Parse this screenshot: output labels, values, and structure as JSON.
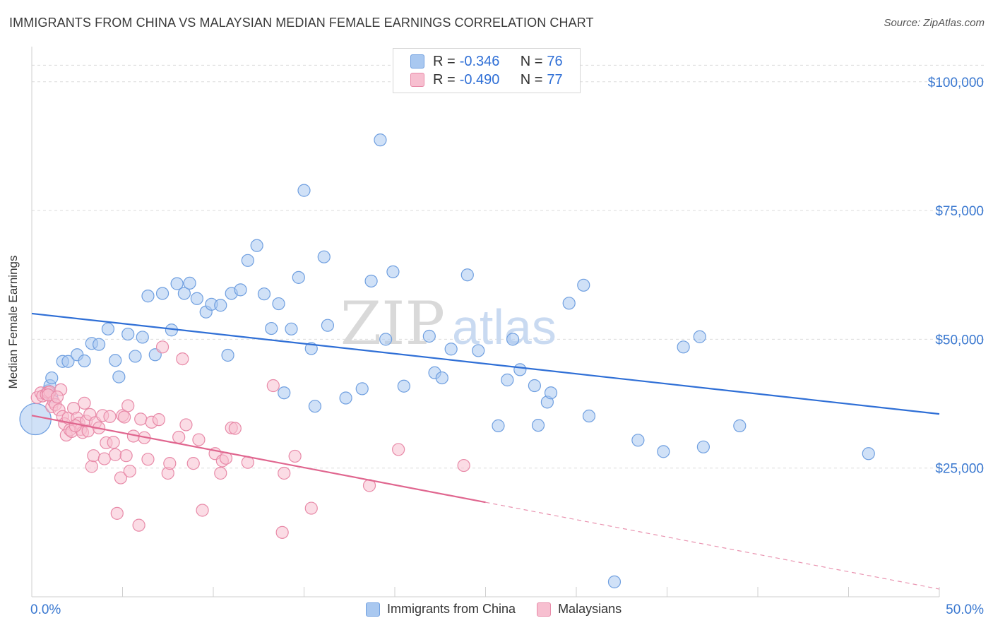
{
  "header": {
    "title": "IMMIGRANTS FROM CHINA VS MALAYSIAN MEDIAN FEMALE EARNINGS CORRELATION CHART",
    "source": "Source: ZipAtlas.com"
  },
  "watermark": {
    "part1": "ZIP",
    "part2": "atlas"
  },
  "legend": {
    "rows": [
      {
        "r_label": "R =",
        "r_value": "-0.346",
        "n_label": "N =",
        "n_value": "76",
        "color": "#a9c8f0",
        "border": "#6f9fe0"
      },
      {
        "r_label": "R =",
        "r_value": "-0.490",
        "n_label": "N =",
        "n_value": "77",
        "color": "#f7bfd0",
        "border": "#e88aa8"
      }
    ]
  },
  "bottom_legend": {
    "items": [
      {
        "label": "Immigrants from China",
        "color": "#a9c8f0",
        "border": "#6f9fe0"
      },
      {
        "label": "Malaysians",
        "color": "#f7bfd0",
        "border": "#e88aa8"
      }
    ]
  },
  "chart_data": {
    "type": "scatter",
    "title": "IMMIGRANTS FROM CHINA VS MALAYSIAN MEDIAN FEMALE EARNINGS CORRELATION CHART",
    "xlabel": "",
    "ylabel": "Median Female Earnings",
    "xlim": [
      0,
      50
    ],
    "ylim": [
      0,
      106000
    ],
    "x_tick_labels": [
      "0.0%",
      "50.0%"
    ],
    "y_ticks": [
      25000,
      50000,
      75000,
      100000
    ],
    "y_tick_labels": [
      "$25,000",
      "$50,000",
      "$75,000",
      "$100,000"
    ],
    "grid": true,
    "legend_position": "top-center",
    "series": [
      {
        "name": "Immigrants from China",
        "color": "#6f9fe0",
        "fill": "#a9c8f0",
        "trend_color": "#2f6fd6",
        "trend": {
          "x0": 0,
          "y0": 55000,
          "x1": 50,
          "y1": 35500,
          "solid_until": 50
        },
        "points": [
          [
            0.2,
            34500,
            2.6
          ],
          [
            0.9,
            40000,
            1
          ],
          [
            1.0,
            41000,
            1
          ],
          [
            1.1,
            38800,
            1
          ],
          [
            1.1,
            42500,
            1
          ],
          [
            1.7,
            45700,
            1
          ],
          [
            2.0,
            45700,
            1
          ],
          [
            2.5,
            47000,
            1
          ],
          [
            2.9,
            45800,
            1
          ],
          [
            3.3,
            49200,
            1
          ],
          [
            3.7,
            49000,
            1
          ],
          [
            4.2,
            52000,
            1
          ],
          [
            4.6,
            45900,
            1
          ],
          [
            4.8,
            42700,
            1
          ],
          [
            5.3,
            51000,
            1
          ],
          [
            5.7,
            46700,
            1
          ],
          [
            6.1,
            50400,
            1
          ],
          [
            6.4,
            58400,
            1
          ],
          [
            6.8,
            47000,
            1
          ],
          [
            7.2,
            58900,
            1
          ],
          [
            7.7,
            51800,
            1
          ],
          [
            8.0,
            60800,
            1
          ],
          [
            8.4,
            58900,
            1
          ],
          [
            8.7,
            60900,
            1
          ],
          [
            9.1,
            57900,
            1
          ],
          [
            9.6,
            55300,
            1
          ],
          [
            9.9,
            56800,
            1
          ],
          [
            10.4,
            56600,
            1
          ],
          [
            10.8,
            46900,
            1
          ],
          [
            11.0,
            58900,
            1
          ],
          [
            11.5,
            59600,
            1
          ],
          [
            11.9,
            65300,
            1
          ],
          [
            12.4,
            68200,
            1
          ],
          [
            12.8,
            58800,
            1
          ],
          [
            13.2,
            52100,
            1
          ],
          [
            13.6,
            56900,
            1
          ],
          [
            13.9,
            39600,
            1
          ],
          [
            14.3,
            52000,
            1
          ],
          [
            14.7,
            62000,
            1
          ],
          [
            15.0,
            78900,
            1
          ],
          [
            15.4,
            48200,
            1
          ],
          [
            15.6,
            37000,
            1
          ],
          [
            16.1,
            66000,
            1
          ],
          [
            16.3,
            52700,
            1
          ],
          [
            17.3,
            38600,
            1
          ],
          [
            18.2,
            40400,
            1
          ],
          [
            18.7,
            61300,
            1
          ],
          [
            19.2,
            88700,
            1
          ],
          [
            19.5,
            50000,
            1
          ],
          [
            19.9,
            63100,
            1
          ],
          [
            20.5,
            40900,
            1
          ],
          [
            21.9,
            50600,
            1
          ],
          [
            22.2,
            43500,
            1
          ],
          [
            22.6,
            42500,
            1
          ],
          [
            23.1,
            48100,
            1
          ],
          [
            24.0,
            62500,
            1
          ],
          [
            24.6,
            47800,
            1
          ],
          [
            25.7,
            33200,
            1
          ],
          [
            26.2,
            42100,
            1
          ],
          [
            26.5,
            50000,
            1
          ],
          [
            26.9,
            44100,
            1
          ],
          [
            27.7,
            41000,
            1
          ],
          [
            27.9,
            33300,
            1
          ],
          [
            28.4,
            37800,
            1
          ],
          [
            28.6,
            39600,
            1
          ],
          [
            29.6,
            57000,
            1
          ],
          [
            30.4,
            60500,
            1
          ],
          [
            30.7,
            35100,
            1
          ],
          [
            32.1,
            2900,
            1
          ],
          [
            33.4,
            30400,
            1
          ],
          [
            34.8,
            28200,
            1
          ],
          [
            35.9,
            48500,
            1
          ],
          [
            36.8,
            50500,
            1
          ],
          [
            37.0,
            29100,
            1
          ],
          [
            39.0,
            33200,
            1
          ],
          [
            46.1,
            27800,
            1
          ]
        ]
      },
      {
        "name": "Malaysians",
        "color": "#e88aa8",
        "fill": "#f7bfd0",
        "trend_color": "#e0668f",
        "trend": {
          "x0": 0,
          "y0": 35200,
          "x1": 50,
          "y1": 1500,
          "solid_until": 25
        },
        "points": [
          [
            0.3,
            38700,
            1
          ],
          [
            0.5,
            39600,
            1
          ],
          [
            0.6,
            39000,
            1
          ],
          [
            0.8,
            39300,
            1
          ],
          [
            0.9,
            39700,
            1
          ],
          [
            1.0,
            39800,
            1
          ],
          [
            1.1,
            36900,
            1
          ],
          [
            1.2,
            37900,
            1
          ],
          [
            1.3,
            37300,
            1
          ],
          [
            1.5,
            36300,
            1
          ],
          [
            1.6,
            40200,
            1
          ],
          [
            1.7,
            35000,
            1
          ],
          [
            1.8,
            33600,
            1
          ],
          [
            1.9,
            31400,
            1
          ],
          [
            2.0,
            34700,
            1
          ],
          [
            2.1,
            32400,
            1
          ],
          [
            2.2,
            32100,
            1
          ],
          [
            2.3,
            36600,
            1
          ],
          [
            2.5,
            34700,
            1
          ],
          [
            2.6,
            33700,
            1
          ],
          [
            2.7,
            32500,
            1
          ],
          [
            2.8,
            31900,
            1
          ],
          [
            2.9,
            37600,
            1
          ],
          [
            3.0,
            34100,
            1
          ],
          [
            3.1,
            32200,
            1
          ],
          [
            3.2,
            35400,
            1
          ],
          [
            3.3,
            25300,
            1
          ],
          [
            3.4,
            27400,
            1
          ],
          [
            3.5,
            33800,
            1
          ],
          [
            3.7,
            32800,
            1
          ],
          [
            3.9,
            35200,
            1
          ],
          [
            4.0,
            26800,
            1
          ],
          [
            4.1,
            29900,
            1
          ],
          [
            4.3,
            35000,
            1
          ],
          [
            4.5,
            30000,
            1
          ],
          [
            4.6,
            27600,
            1
          ],
          [
            4.7,
            16200,
            1
          ],
          [
            4.9,
            23100,
            1
          ],
          [
            5.0,
            35200,
            1
          ],
          [
            5.1,
            34900,
            1
          ],
          [
            5.2,
            27400,
            1
          ],
          [
            5.3,
            37100,
            1
          ],
          [
            5.4,
            24400,
            1
          ],
          [
            5.6,
            31200,
            1
          ],
          [
            5.9,
            13900,
            1
          ],
          [
            6.0,
            34500,
            1
          ],
          [
            6.2,
            30900,
            1
          ],
          [
            6.4,
            26700,
            1
          ],
          [
            6.6,
            33900,
            1
          ],
          [
            7.0,
            34400,
            1
          ],
          [
            7.2,
            48500,
            1
          ],
          [
            7.5,
            24000,
            1
          ],
          [
            7.6,
            25900,
            1
          ],
          [
            8.1,
            31000,
            1
          ],
          [
            8.3,
            46200,
            1
          ],
          [
            8.5,
            33400,
            1
          ],
          [
            8.9,
            25900,
            1
          ],
          [
            9.2,
            30500,
            1
          ],
          [
            9.4,
            16800,
            1
          ],
          [
            10.1,
            27800,
            1
          ],
          [
            10.4,
            24000,
            1
          ],
          [
            10.5,
            26400,
            1
          ],
          [
            10.7,
            26900,
            1
          ],
          [
            11.0,
            32800,
            1
          ],
          [
            11.2,
            32700,
            1
          ],
          [
            11.9,
            26100,
            1
          ],
          [
            13.3,
            41000,
            1
          ],
          [
            13.8,
            12500,
            1
          ],
          [
            13.9,
            24000,
            1
          ],
          [
            14.5,
            27300,
            1
          ],
          [
            15.4,
            17200,
            1
          ],
          [
            18.6,
            21600,
            1
          ],
          [
            20.2,
            28600,
            1
          ],
          [
            23.8,
            25500,
            1
          ],
          [
            0.9,
            39200,
            1
          ],
          [
            1.4,
            38800,
            1
          ],
          [
            2.4,
            33200,
            1
          ]
        ]
      }
    ]
  }
}
